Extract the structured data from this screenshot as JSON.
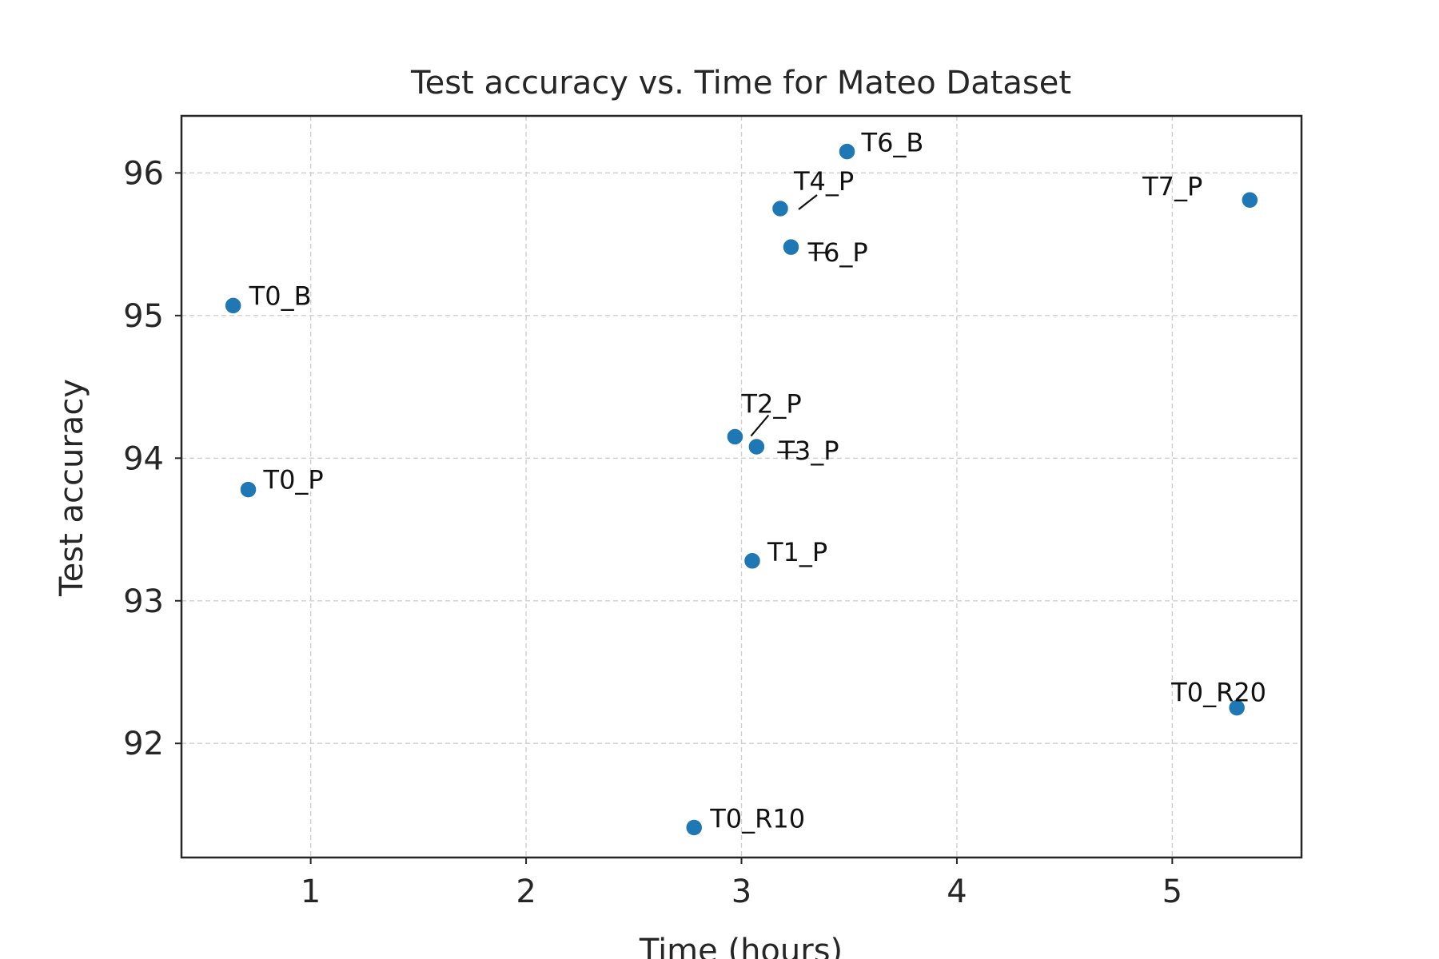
{
  "chart_data": {
    "type": "scatter",
    "title": "Test accuracy vs. Time for Mateo Dataset",
    "xlabel": "Time (hours)",
    "ylabel": "Test accuracy",
    "xlim": [
      0.4,
      5.6
    ],
    "ylim": [
      91.2,
      96.4
    ],
    "xticks": [
      1,
      2,
      3,
      4,
      5
    ],
    "yticks": [
      92,
      93,
      94,
      95,
      96
    ],
    "grid": true,
    "point_color": "#1f77b4",
    "points": [
      {
        "label": "T0_B",
        "x": 0.64,
        "y": 95.07
      },
      {
        "label": "T0_P",
        "x": 0.71,
        "y": 93.78
      },
      {
        "label": "T0_R10",
        "x": 2.78,
        "y": 91.41
      },
      {
        "label": "T1_P",
        "x": 3.05,
        "y": 93.28
      },
      {
        "label": "T2_P",
        "x": 2.97,
        "y": 94.15
      },
      {
        "label": "T3_P",
        "x": 3.07,
        "y": 94.08
      },
      {
        "label": "T4_P",
        "x": 3.18,
        "y": 95.75
      },
      {
        "label": "T6_P",
        "x": 3.23,
        "y": 95.48
      },
      {
        "label": "T6_B",
        "x": 3.49,
        "y": 96.15
      },
      {
        "label": "T7_P",
        "x": 5.36,
        "y": 95.81
      },
      {
        "label": "T0_R20",
        "x": 5.3,
        "y": 92.25
      }
    ]
  }
}
